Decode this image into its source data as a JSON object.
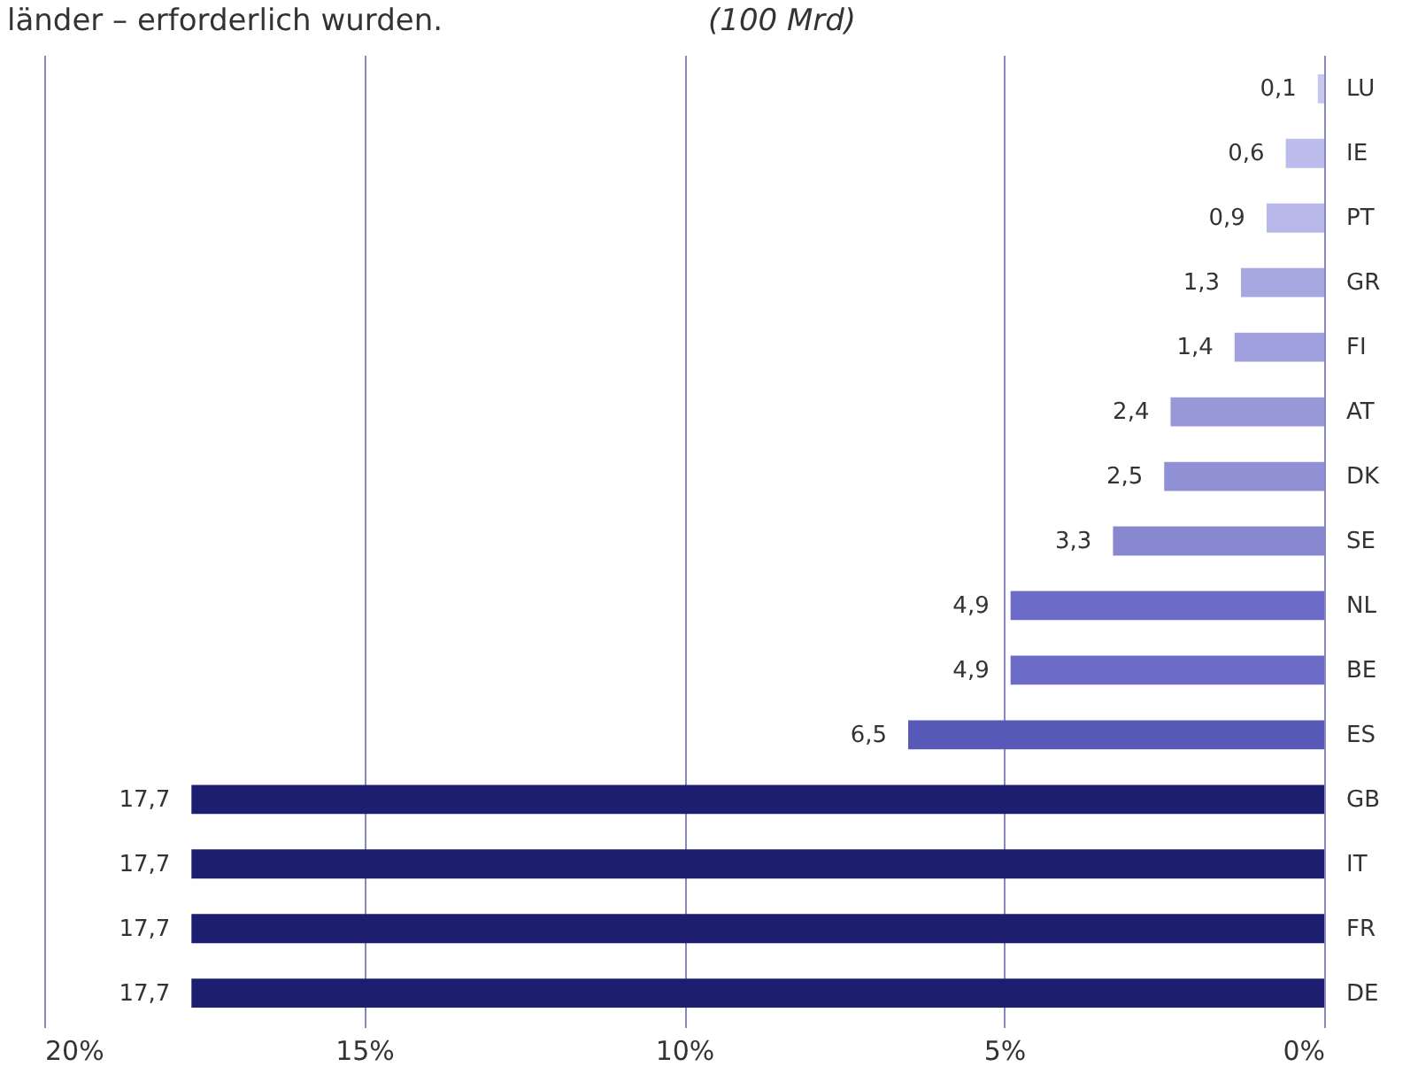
{
  "chart_data": {
    "type": "bar",
    "orientation": "horizontal",
    "annotations": [
      "länder – erforderlich wurden.",
      "(100 Mrd)"
    ],
    "categories": [
      "LU",
      "IE",
      "PT",
      "GR",
      "FI",
      "AT",
      "DK",
      "SE",
      "NL",
      "BE",
      "ES",
      "GB",
      "IT",
      "FR",
      "DE"
    ],
    "values": [
      0.1,
      0.6,
      0.9,
      1.3,
      1.4,
      2.4,
      2.5,
      3.3,
      4.9,
      4.9,
      6.5,
      17.7,
      17.7,
      17.7,
      17.7
    ],
    "value_labels": [
      "0,1",
      "0,6",
      "0,9",
      "1,3",
      "1,4",
      "2,4",
      "2,5",
      "3,3",
      "4,9",
      "4,9",
      "6,5",
      "17,7",
      "17,7",
      "17,7",
      "17,7"
    ],
    "colors": [
      "#c8c8ee",
      "#bcbcec",
      "#b8b8e8",
      "#a8a8e0",
      "#a0a0de",
      "#9898d8",
      "#9090d4",
      "#8888d0",
      "#6c6cc8",
      "#6c6cc8",
      "#5858b8",
      "#1e1e70",
      "#1e1e70",
      "#1e1e70",
      "#1e1e70"
    ],
    "xlim": [
      20,
      0
    ],
    "xticks": [
      {
        "value": 20,
        "label": "20%"
      },
      {
        "value": 15,
        "label": "15%"
      },
      {
        "value": 10,
        "label": "10%"
      },
      {
        "value": 5,
        "label": "5%"
      },
      {
        "value": 0,
        "label": "0%"
      }
    ],
    "grid": "x"
  }
}
